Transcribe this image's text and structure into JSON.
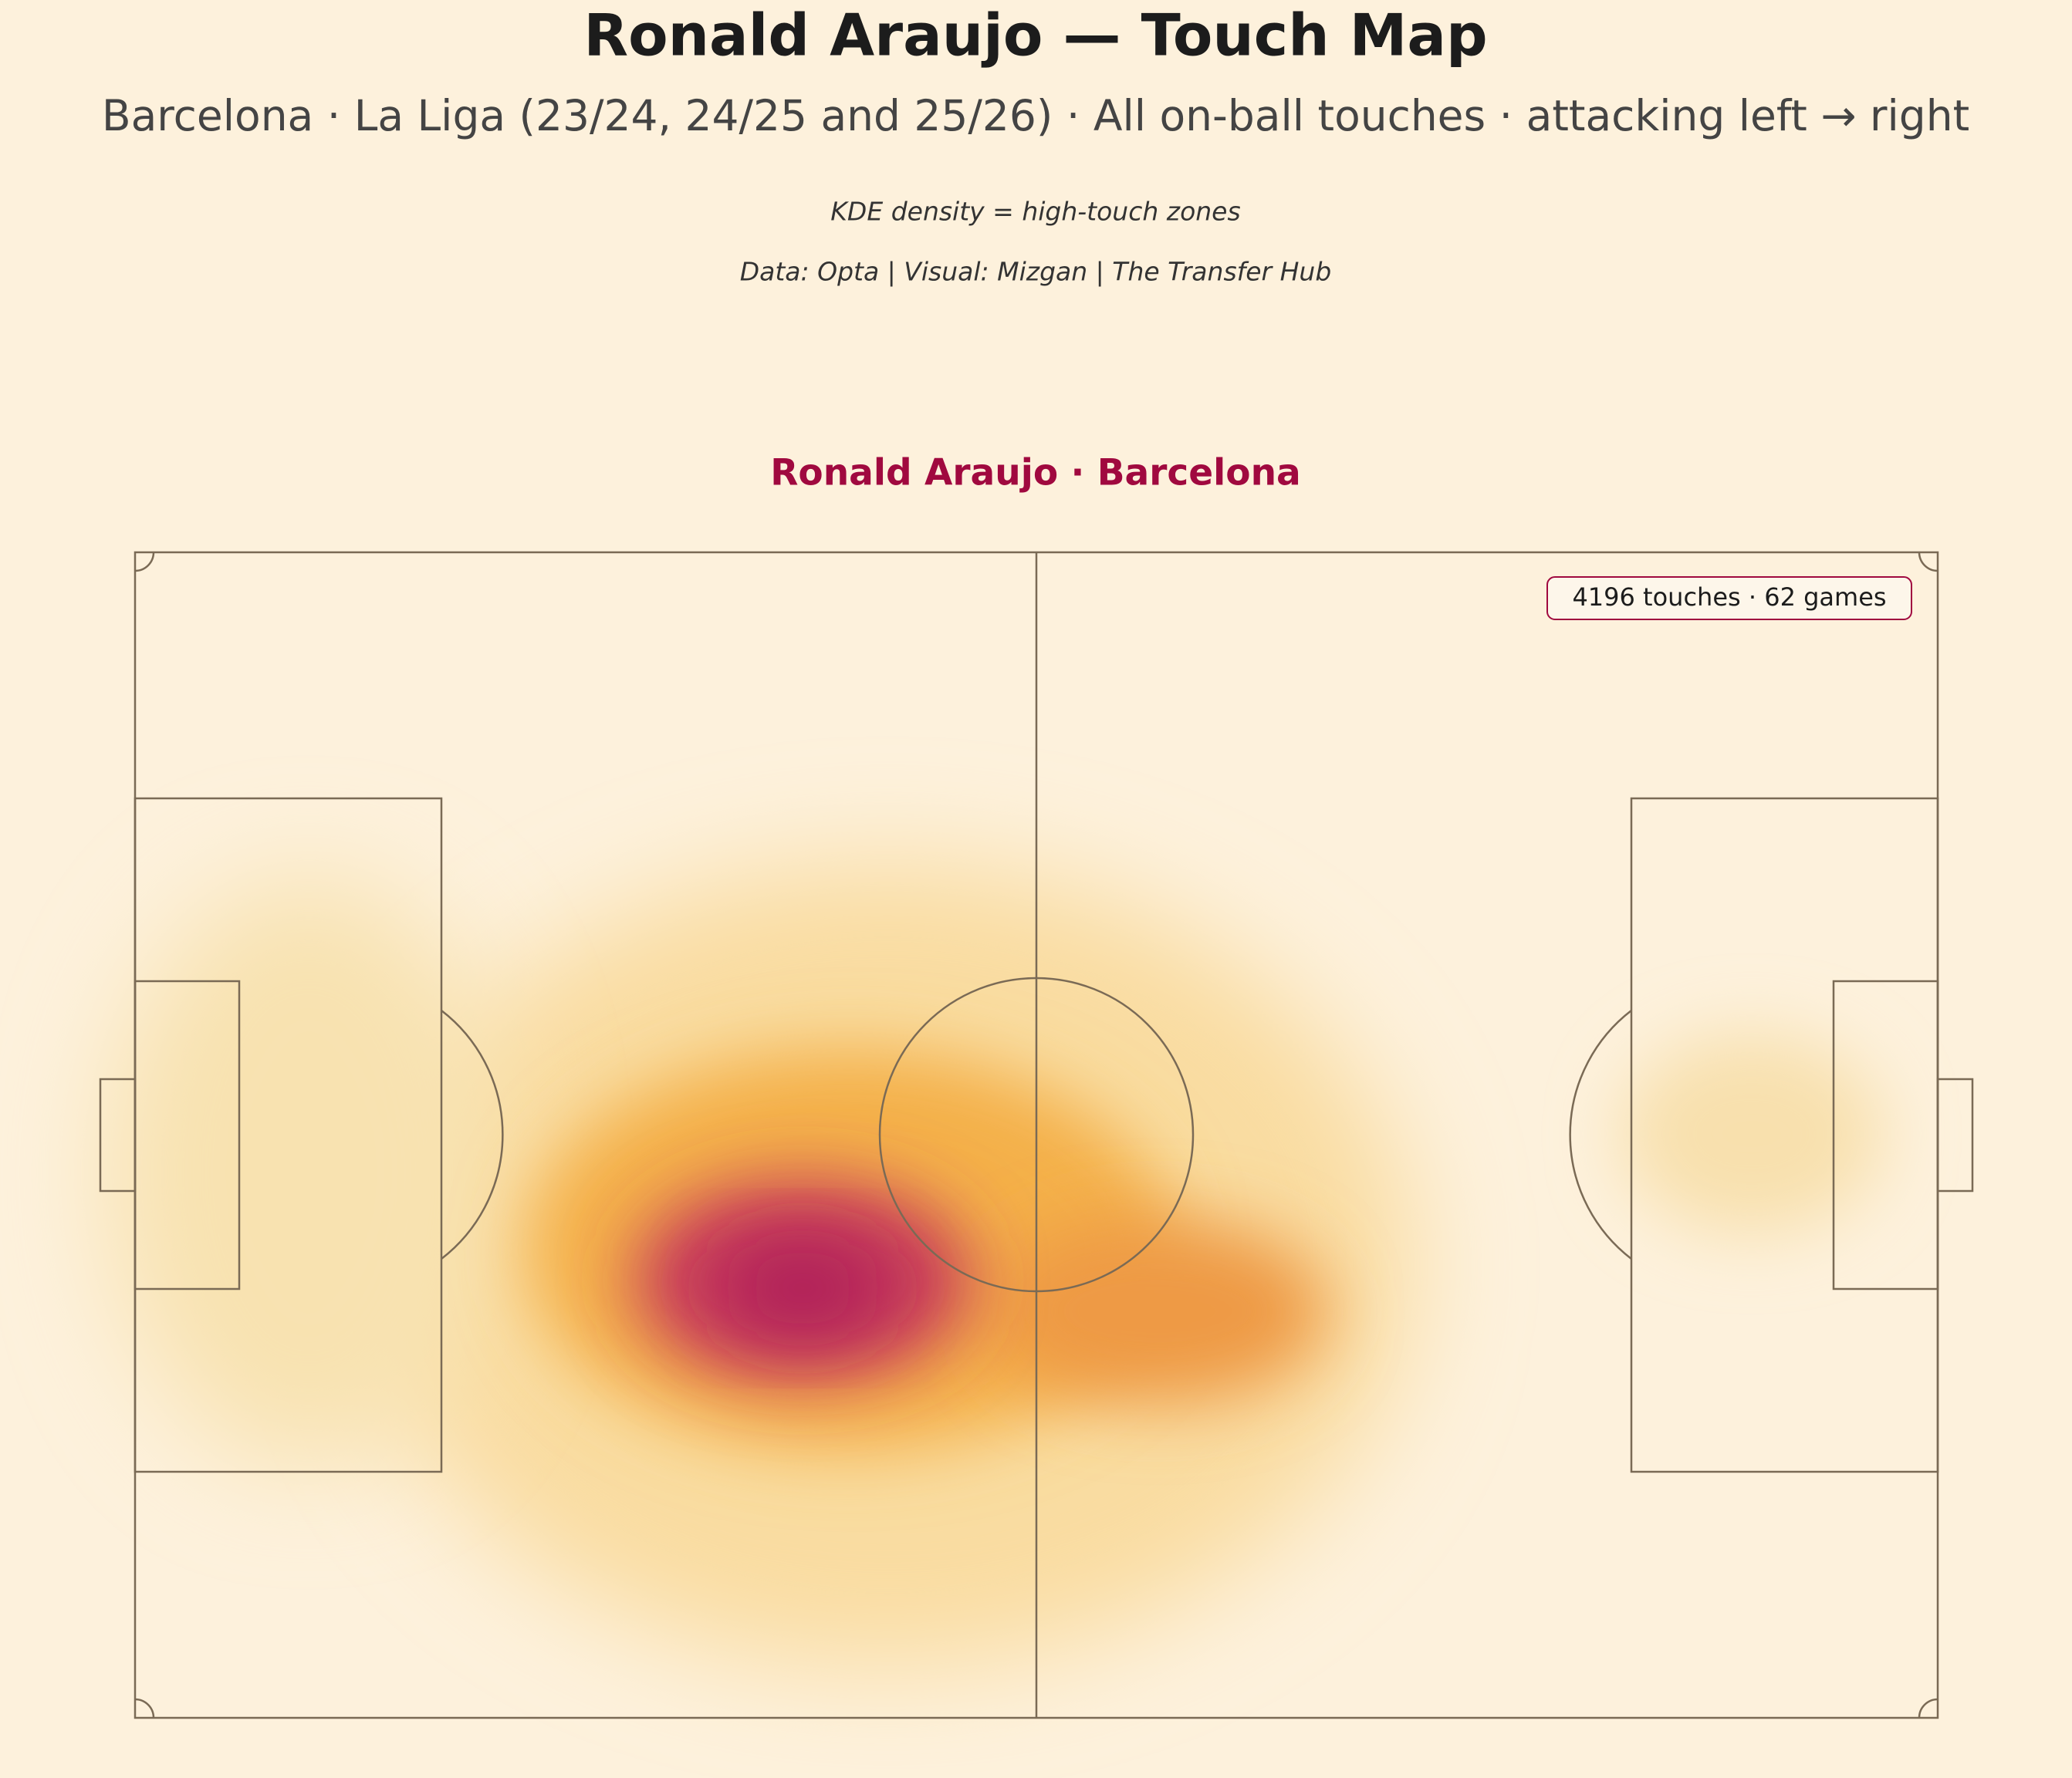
{
  "title": "Ronald Araujo  —  Touch Map",
  "subtitle": "Barcelona  ·  La Liga (23/24, 24/25 and 25/26)  ·  All on-ball touches  ·  attacking left → right",
  "note": "KDE density = high-touch zones",
  "credit": "Data: Opta | Visual: Mizgan | The Transfer Hub",
  "panel_title": "Ronald Araujo  ·  Barcelona",
  "stats_text": "4196 touches  ·  62 games"
}
